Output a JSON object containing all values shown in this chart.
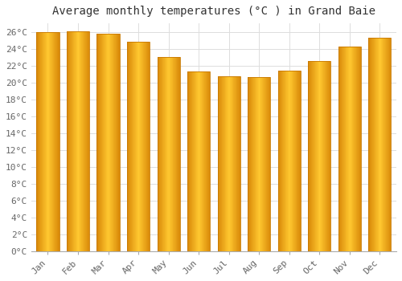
{
  "title": "Average monthly temperatures (°C ) in Grand Baie",
  "months": [
    "Jan",
    "Feb",
    "Mar",
    "Apr",
    "May",
    "Jun",
    "Jul",
    "Aug",
    "Sep",
    "Oct",
    "Nov",
    "Dec"
  ],
  "values": [
    26.0,
    26.1,
    25.8,
    24.8,
    23.0,
    21.3,
    20.7,
    20.6,
    21.4,
    22.5,
    24.2,
    25.3
  ],
  "bar_color_center": "#FFC04D",
  "bar_color_edge": "#E8940A",
  "bar_color_left": "#F0A020",
  "background_color": "#FFFFFF",
  "grid_color": "#DDDDDD",
  "ylim": [
    0,
    27
  ],
  "ytick_step": 2,
  "title_fontsize": 10,
  "tick_fontsize": 8,
  "font_family": "monospace"
}
